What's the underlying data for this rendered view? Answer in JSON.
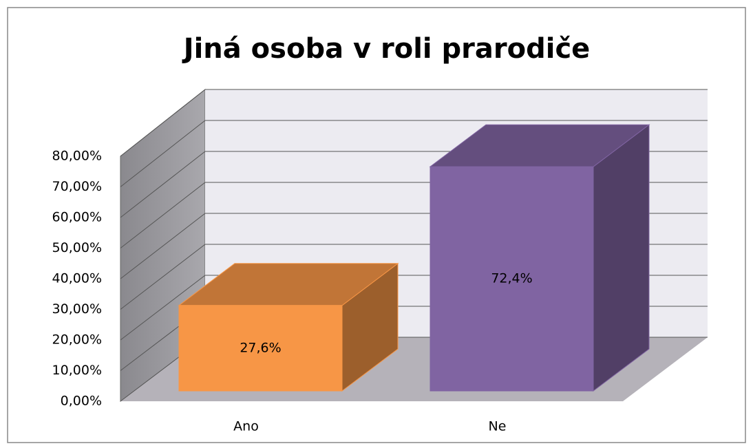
{
  "chart_data": {
    "type": "bar3d",
    "title": "Jiná osoba v roli prarodiče",
    "categories": [
      "Ano",
      "Ne"
    ],
    "values": [
      27.6,
      72.4
    ],
    "value_labels": [
      "27,6%",
      "72,4%"
    ],
    "colors": [
      "#f79646",
      "#8064a2"
    ],
    "ylim": [
      0,
      80
    ],
    "yticks": [
      {
        "value": 0,
        "label": "0,00%"
      },
      {
        "value": 10,
        "label": "10,00%"
      },
      {
        "value": 20,
        "label": "20,00%"
      },
      {
        "value": 30,
        "label": "30,00%"
      },
      {
        "value": 40,
        "label": "40,00%"
      },
      {
        "value": 50,
        "label": "50,00%"
      },
      {
        "value": 60,
        "label": "60,00%"
      },
      {
        "value": 70,
        "label": "70,00%"
      },
      {
        "value": 80,
        "label": "80,00%"
      }
    ],
    "grid": true
  }
}
